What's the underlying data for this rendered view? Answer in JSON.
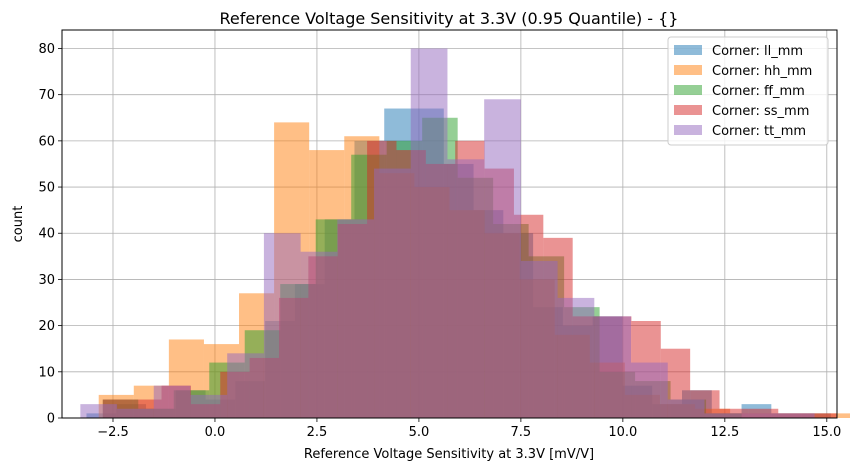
{
  "chart_data": {
    "type": "histogram",
    "title": "Reference Voltage Sensitivity at 3.3V (0.95 Quantile) - {}",
    "xlabel": "Reference Voltage Sensitivity at 3.3V [mV/V]",
    "ylabel": "count",
    "xlim": [
      -3.75,
      15.25
    ],
    "ylim": [
      0,
      84
    ],
    "xticks": [
      -2.5,
      0.0,
      2.5,
      5.0,
      7.5,
      10.0,
      12.5,
      15.0
    ],
    "xtick_labels": [
      "−2.5",
      "0.0",
      "2.5",
      "5.0",
      "7.5",
      "10.0",
      "12.5",
      "15.0"
    ],
    "yticks": [
      0,
      10,
      20,
      30,
      40,
      50,
      60,
      70,
      80
    ],
    "ytick_labels": [
      "0",
      "10",
      "20",
      "30",
      "40",
      "50",
      "60",
      "70",
      "80"
    ],
    "grid": true,
    "legend_position": "top-right",
    "bar_alpha": 0.5,
    "series": [
      {
        "name": "Corner: ll_mm",
        "color": "#1f77b4",
        "bin_start": -3.15,
        "bin_width": 0.73,
        "values": [
          1,
          3,
          2,
          6,
          4,
          8,
          21,
          29,
          43,
          60,
          67,
          67,
          55,
          45,
          40,
          24,
          20,
          22,
          7,
          3,
          6,
          1,
          3,
          1,
          1,
          0,
          0
        ]
      },
      {
        "name": "Corner: hh_mm",
        "color": "#ff7f0e",
        "bin_start": -2.85,
        "bin_width": 0.86,
        "values": [
          5,
          7,
          17,
          16,
          27,
          64,
          58,
          61,
          53,
          50,
          45,
          40,
          30,
          18,
          12,
          5,
          3,
          2,
          1,
          1,
          1,
          1
        ]
      },
      {
        "name": "Corner: ff_mm",
        "color": "#2ca02c",
        "bin_start": -2.75,
        "bin_width": 0.87,
        "values": [
          4,
          2,
          6,
          12,
          19,
          29,
          43,
          57,
          60,
          65,
          52,
          42,
          35,
          24,
          10,
          8,
          4,
          1,
          0
        ]
      },
      {
        "name": "Corner: ss_mm",
        "color": "#d62728",
        "bin_start": -2.75,
        "bin_width": 0.72,
        "values": [
          4,
          4,
          7,
          3,
          10,
          13,
          26,
          35,
          42,
          60,
          58,
          55,
          60,
          54,
          44,
          39,
          22,
          22,
          21,
          15,
          6,
          2,
          2,
          1,
          1,
          0,
          1
        ]
      },
      {
        "name": "Corner: tt_mm",
        "color": "#9467bd",
        "bin_start": -3.3,
        "bin_width": 0.9,
        "values": [
          3,
          2,
          7,
          5,
          14,
          40,
          36,
          43,
          54,
          80,
          56,
          69,
          34,
          26,
          22,
          12,
          4,
          1,
          1,
          1
        ]
      }
    ]
  }
}
